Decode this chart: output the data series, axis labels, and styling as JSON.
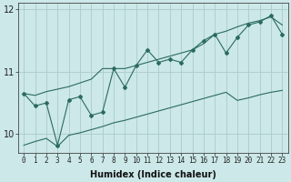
{
  "xlabel": "Humidex (Indice chaleur)",
  "bg_color": "#cce8e8",
  "line_color": "#2a6b5e",
  "grid_color": "#aacccc",
  "x_values": [
    0,
    1,
    2,
    3,
    4,
    5,
    6,
    7,
    8,
    9,
    10,
    11,
    12,
    13,
    14,
    15,
    16,
    17,
    18,
    19,
    20,
    21,
    22,
    23
  ],
  "y_main": [
    10.65,
    10.45,
    10.5,
    9.82,
    10.55,
    10.6,
    10.3,
    10.35,
    11.05,
    10.75,
    11.1,
    11.35,
    11.15,
    11.2,
    11.15,
    11.35,
    11.5,
    11.6,
    11.3,
    11.55,
    11.75,
    11.8,
    11.9,
    11.6
  ],
  "y_upper": [
    10.65,
    10.62,
    10.68,
    10.72,
    10.76,
    10.82,
    10.88,
    11.05,
    11.05,
    11.05,
    11.1,
    11.15,
    11.2,
    11.25,
    11.3,
    11.35,
    11.45,
    11.6,
    11.65,
    11.72,
    11.78,
    11.82,
    11.88,
    11.75
  ],
  "y_lower": [
    9.82,
    9.88,
    9.93,
    9.8,
    9.98,
    10.02,
    10.07,
    10.12,
    10.18,
    10.22,
    10.27,
    10.32,
    10.37,
    10.42,
    10.47,
    10.52,
    10.57,
    10.62,
    10.67,
    10.54,
    10.58,
    10.63,
    10.67,
    10.7
  ],
  "xlim": [
    -0.5,
    23.5
  ],
  "ylim": [
    9.7,
    12.1
  ],
  "yticks": [
    10,
    11,
    12
  ],
  "xticks": [
    0,
    1,
    2,
    3,
    4,
    5,
    6,
    7,
    8,
    9,
    10,
    11,
    12,
    13,
    14,
    15,
    16,
    17,
    18,
    19,
    20,
    21,
    22,
    23
  ],
  "tick_fontsize": 5.5,
  "label_fontsize": 7
}
